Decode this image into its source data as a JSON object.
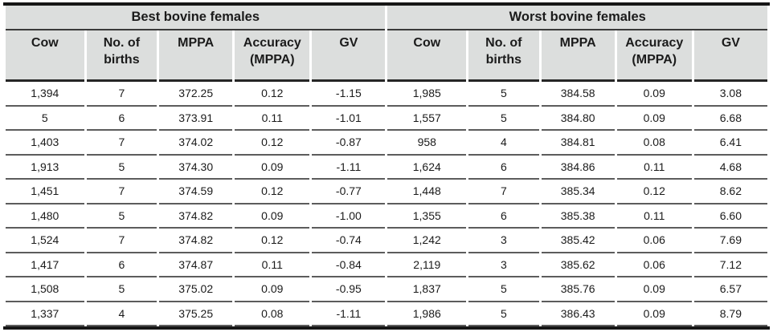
{
  "table": {
    "columns": [
      "Cow",
      "No. of births",
      "MPPA",
      "Accuracy (MPPA)",
      "GV"
    ],
    "best": {
      "title": "Best bovine females",
      "rows": [
        [
          "1,394",
          "7",
          "372.25",
          "0.12",
          "-1.15"
        ],
        [
          "5",
          "6",
          "373.91",
          "0.11",
          "-1.01"
        ],
        [
          "1,403",
          "7",
          "374.02",
          "0.12",
          "-0.87"
        ],
        [
          "1,913",
          "5",
          "374.30",
          "0.09",
          "-1.11"
        ],
        [
          "1,451",
          "7",
          "374.59",
          "0.12",
          "-0.77"
        ],
        [
          "1,480",
          "5",
          "374.82",
          "0.09",
          "-1.00"
        ],
        [
          "1,524",
          "7",
          "374.82",
          "0.12",
          "-0.74"
        ],
        [
          "1,417",
          "6",
          "374.87",
          "0.11",
          "-0.84"
        ],
        [
          "1,508",
          "5",
          "375.02",
          "0.09",
          "-0.95"
        ],
        [
          "1,337",
          "4",
          "375.25",
          "0.08",
          "-1.11"
        ]
      ]
    },
    "worst": {
      "title": "Worst bovine females",
      "rows": [
        [
          "1,985",
          "5",
          "384.58",
          "0.09",
          "3.08"
        ],
        [
          "1,557",
          "5",
          "384.80",
          "0.09",
          "6.68"
        ],
        [
          "958",
          "4",
          "384.81",
          "0.08",
          "6.41"
        ],
        [
          "1,624",
          "6",
          "384.86",
          "0.11",
          "4.68"
        ],
        [
          "1,448",
          "7",
          "385.34",
          "0.12",
          "8.62"
        ],
        [
          "1,355",
          "6",
          "385.38",
          "0.11",
          "6.60"
        ],
        [
          "1,242",
          "3",
          "385.42",
          "0.06",
          "7.69"
        ],
        [
          "2,119",
          "3",
          "385.62",
          "0.06",
          "7.12"
        ],
        [
          "1,837",
          "5",
          "385.76",
          "0.09",
          "6.57"
        ],
        [
          "1,986",
          "5",
          "386.43",
          "0.09",
          "8.79"
        ]
      ]
    },
    "colors": {
      "header_bg": "#dcdedd",
      "frame": "#161616",
      "row_rule": "#5c5c5c",
      "text": "#1b1b1b"
    }
  }
}
